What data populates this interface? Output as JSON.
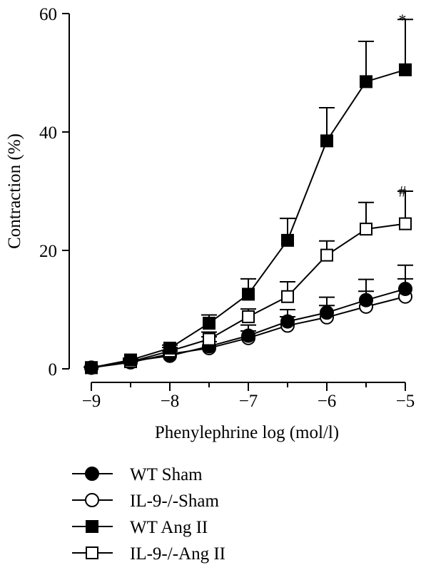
{
  "chart_data": {
    "type": "line",
    "title": "",
    "xlabel": "Phenylephrine log (mol/l)",
    "ylabel": "Contraction (%)",
    "xlim": [
      -9,
      -5
    ],
    "ylim": [
      0,
      60
    ],
    "x_ticks": [
      -9,
      -8,
      -7,
      -6,
      -5
    ],
    "x_tick_labels": [
      "−9",
      "−8",
      "−7",
      "−6",
      "−5"
    ],
    "y_ticks": [
      0,
      20,
      40,
      60
    ],
    "y_tick_labels": [
      "0",
      "20",
      "40",
      "60"
    ],
    "x": [
      -9,
      -8.5,
      -8,
      -7.5,
      -7,
      -6.5,
      -6,
      -5.5,
      -5
    ],
    "grid": false,
    "legend_position": "bottom",
    "series": [
      {
        "name": "WT Sham",
        "marker": "circle",
        "fill": "#000000",
        "values": [
          0.2,
          1.3,
          2.2,
          3.8,
          5.6,
          8.0,
          9.5,
          11.6,
          13.5
        ],
        "errors": [
          0.1,
          0.3,
          0.8,
          1.6,
          1.8,
          2.0,
          2.6,
          3.5,
          4.0
        ]
      },
      {
        "name": "IL-9-/-Sham",
        "marker": "circle",
        "fill": "#ffffff",
        "values": [
          0.2,
          1.1,
          2.5,
          3.5,
          5.2,
          7.3,
          8.7,
          10.5,
          12.2
        ],
        "errors": [
          0.1,
          0.2,
          0.6,
          1.1,
          1.2,
          1.5,
          2.0,
          2.6,
          3.0
        ]
      },
      {
        "name": "WT Ang II",
        "marker": "square",
        "fill": "#000000",
        "values": [
          0.2,
          1.5,
          3.5,
          7.7,
          12.6,
          21.7,
          38.5,
          48.5,
          50.5
        ],
        "errors": [
          0.1,
          0.3,
          0.5,
          1.4,
          2.6,
          3.7,
          5.6,
          6.8,
          8.5
        ]
      },
      {
        "name": "IL-9-/-Ang II",
        "marker": "square",
        "fill": "#ffffff",
        "values": [
          0.2,
          1.2,
          3.0,
          5.0,
          8.8,
          12.2,
          19.2,
          23.6,
          24.5
        ],
        "errors": [
          0.1,
          0.3,
          0.6,
          1.2,
          1.3,
          2.5,
          2.4,
          4.5,
          5.5
        ]
      }
    ],
    "annotations": [
      {
        "text": "*",
        "x": -5,
        "y": 60.5
      },
      {
        "text": "#",
        "x": -5,
        "y": 31.5
      }
    ]
  }
}
